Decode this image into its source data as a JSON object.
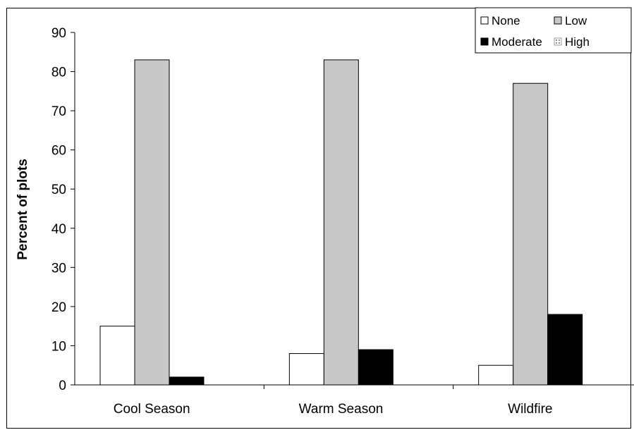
{
  "chart_data": {
    "type": "bar",
    "title": "",
    "xlabel": "",
    "ylabel": "Percent of plots",
    "ylim": [
      0,
      90
    ],
    "yticks": [
      0,
      10,
      20,
      30,
      40,
      50,
      60,
      70,
      80,
      90
    ],
    "categories": [
      "Cool Season",
      "Warm Season",
      "Wildfire"
    ],
    "series": [
      {
        "name": "None",
        "values": [
          15,
          8,
          5
        ],
        "color": "#ffffff",
        "pattern": "solid"
      },
      {
        "name": "Low",
        "values": [
          83,
          83,
          77
        ],
        "color": "#c8c8c8",
        "pattern": "solid"
      },
      {
        "name": "Moderate",
        "values": [
          2,
          9,
          18
        ],
        "color": "#000000",
        "pattern": "solid"
      },
      {
        "name": "High",
        "values": [
          0,
          0,
          0
        ],
        "color": "#ffffff",
        "pattern": "dotted"
      }
    ],
    "legend_position": "top-right",
    "grid": false
  }
}
